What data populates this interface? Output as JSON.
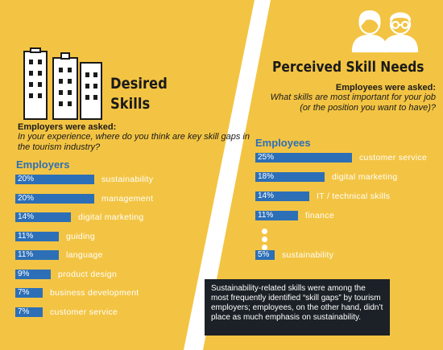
{
  "left_panel": {
    "title": "Desired\nSkills",
    "question_bold": "Employers were asked:",
    "question_text": "In your experience, where do you think are key skill gaps in the tourism industry?"
  },
  "right_panel": {
    "title": "Perceived Skill Needs",
    "question_bold": "Employees were asked:",
    "question_text": "What skills are most important for your job (or the position you want to have)?"
  },
  "callout": {
    "text": "Sustainability-related skills were among the most frequently identified “skill gaps” by tourism employers; employees, on the other hand, didn’t place as much emphasis on sustainability."
  },
  "colors": {
    "background": "#f3c443",
    "bar": "#2d6fb6",
    "callout_bg": "#1b2126"
  },
  "icons": [
    "buildings-icon",
    "people-icon",
    "ellipsis-dots-icon"
  ],
  "chart_data": [
    {
      "type": "bar",
      "orientation": "horizontal",
      "series_name": "Employers",
      "unit": "%",
      "categories": [
        "sustainability",
        "management",
        "digital marketing",
        "guiding",
        "language",
        "product design",
        "business development",
        "customer service"
      ],
      "values": [
        20,
        20,
        14,
        11,
        11,
        9,
        7,
        7
      ]
    },
    {
      "type": "bar",
      "orientation": "horizontal",
      "series_name": "Employees",
      "unit": "%",
      "categories": [
        "customer service",
        "digital marketing",
        "IT / technical skills",
        "finance",
        "sustainability"
      ],
      "values": [
        25,
        18,
        14,
        11,
        5
      ],
      "gap_after_index": 3
    }
  ]
}
